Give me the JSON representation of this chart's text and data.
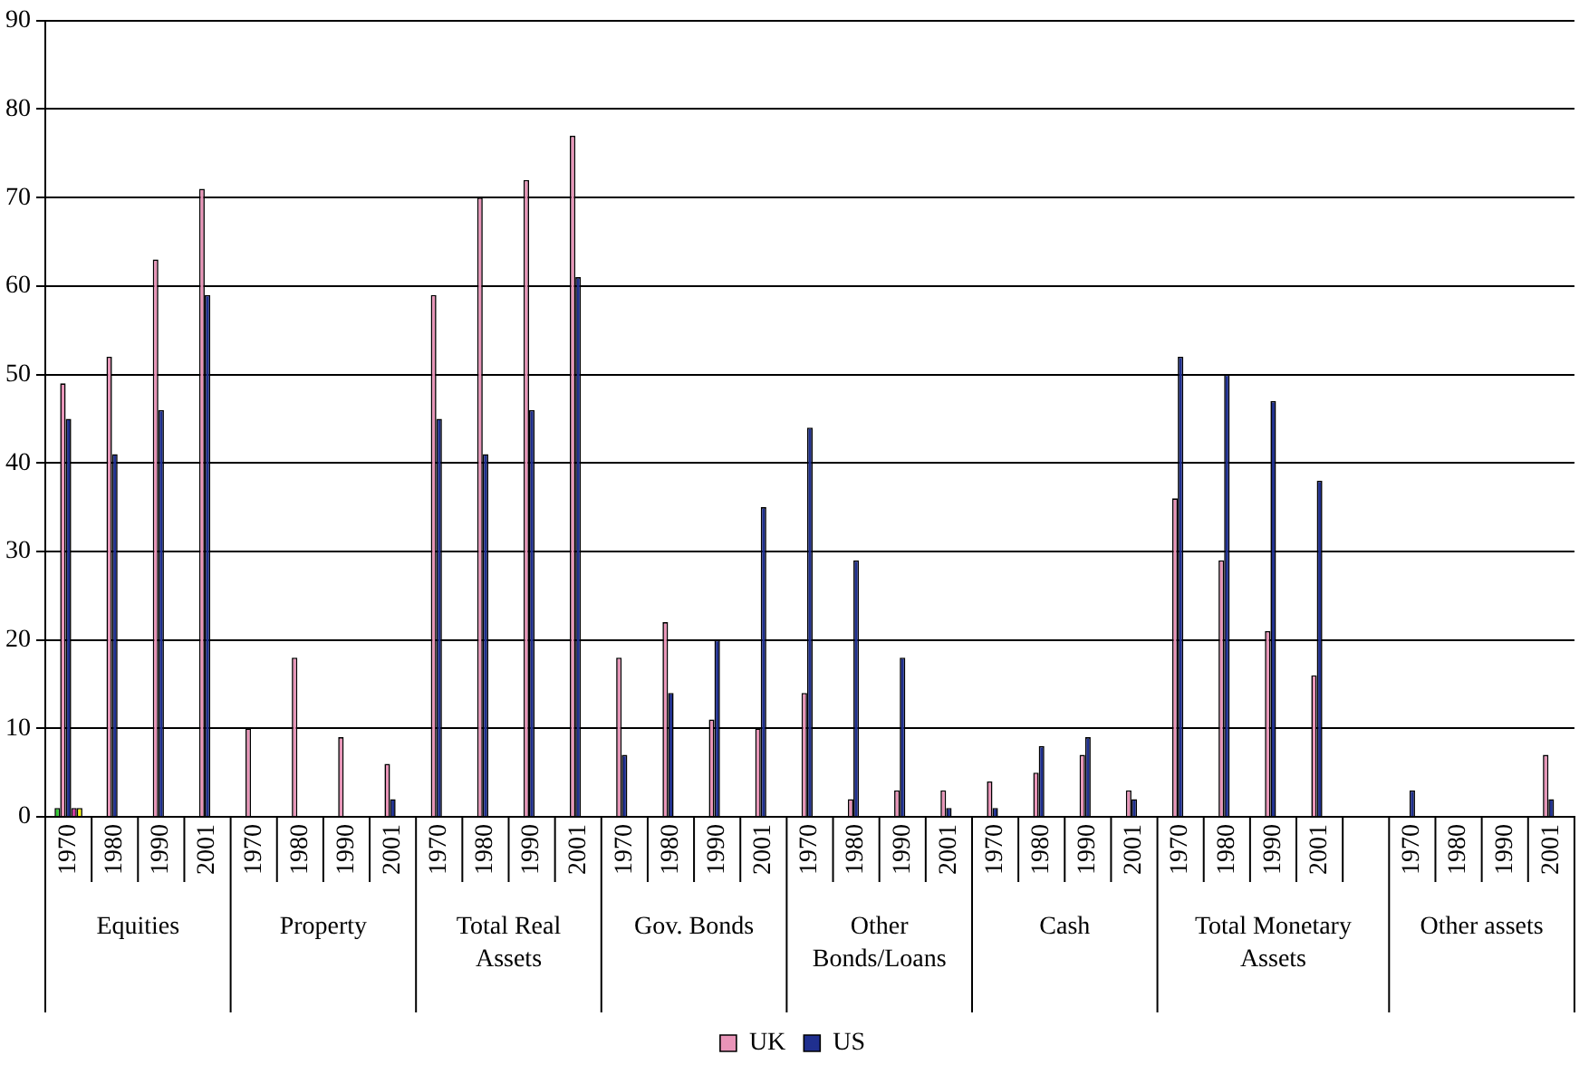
{
  "chart_data": {
    "type": "bar",
    "categories": [
      "1970",
      "1980",
      "1990",
      "2001",
      "1970",
      "1980",
      "1990",
      "2001",
      "1970",
      "1980",
      "1990",
      "2001",
      "1970",
      "1980",
      "1990",
      "2001",
      "1970",
      "1980",
      "1990",
      "2001",
      "1970",
      "1980",
      "1990",
      "2001",
      "1970",
      "1980",
      "1990",
      "2001",
      null,
      "1970",
      "1980",
      "1990",
      "2001"
    ],
    "series": [
      {
        "color": "#33cc33",
        "values": [
          1,
          null,
          null,
          null,
          null,
          null,
          null,
          null,
          null,
          null,
          null,
          null,
          null,
          null,
          null,
          null,
          null,
          null,
          null,
          null,
          null,
          null,
          null,
          null,
          null,
          null,
          null,
          null,
          null,
          null,
          null,
          null,
          null
        ]
      },
      {
        "name": "UK",
        "color": "#e994b8",
        "values": [
          49,
          52,
          63,
          71,
          10,
          18,
          9,
          6,
          59,
          70,
          72,
          77,
          18,
          22,
          11,
          10,
          14,
          2,
          3,
          3,
          4,
          5,
          7,
          3,
          36,
          29,
          21,
          16,
          null,
          null,
          null,
          null,
          7
        ]
      },
      {
        "name": "US",
        "color": "#1f2f8f",
        "values": [
          45,
          41,
          46,
          59,
          null,
          null,
          null,
          2,
          45,
          41,
          46,
          61,
          7,
          14,
          20,
          35,
          44,
          29,
          18,
          1,
          1,
          8,
          9,
          2,
          52,
          50,
          47,
          38,
          null,
          3,
          null,
          null,
          2
        ]
      },
      {
        "color": "#cc3399",
        "values": [
          1,
          null,
          null,
          null,
          null,
          null,
          null,
          null,
          null,
          null,
          null,
          null,
          null,
          null,
          null,
          null,
          null,
          null,
          null,
          null,
          null,
          null,
          null,
          null,
          null,
          null,
          null,
          null,
          null,
          null,
          null,
          null,
          null
        ]
      },
      {
        "color": "#ffff00",
        "values": [
          1,
          null,
          null,
          null,
          null,
          null,
          null,
          null,
          null,
          null,
          null,
          null,
          null,
          null,
          null,
          null,
          null,
          null,
          null,
          null,
          null,
          null,
          null,
          null,
          null,
          null,
          null,
          null,
          null,
          null,
          null,
          null,
          null
        ]
      }
    ],
    "annotations": [
      "Equities",
      "Property",
      "Total Real Assets",
      "Gov. Bonds",
      "Other Bonds/Loans",
      "Cash",
      "Total Monetary Assets",
      "Other assets"
    ],
    "ylim": [
      0,
      90
    ],
    "yticks": [
      0,
      10,
      20,
      30,
      40,
      50,
      60,
      70,
      80,
      90
    ],
    "grid": "y",
    "legend": "bottom"
  }
}
